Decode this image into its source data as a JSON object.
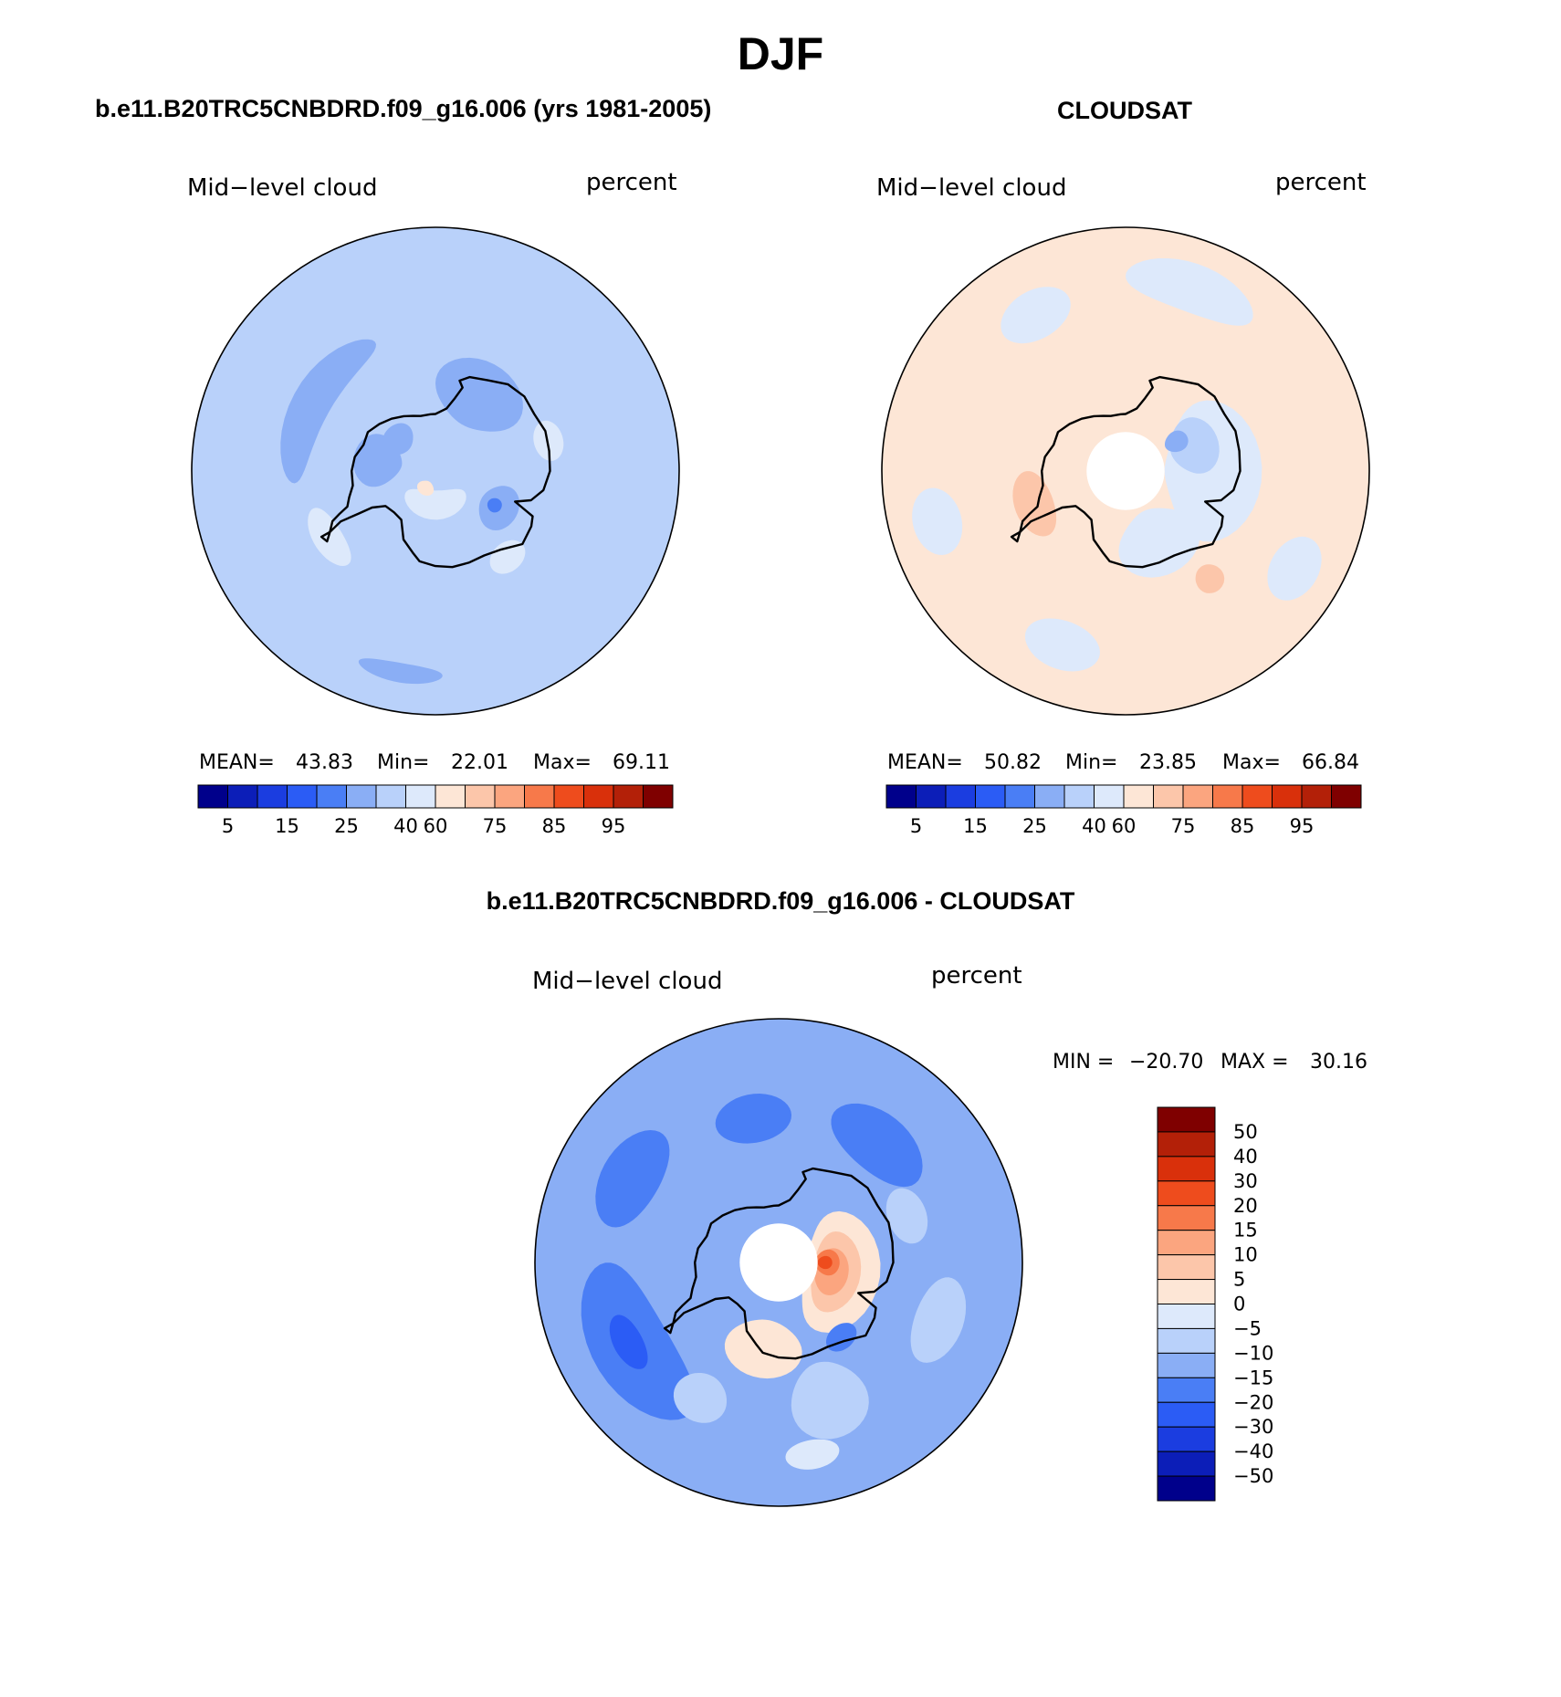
{
  "figure": {
    "title": "DJF"
  },
  "palettes": {
    "absolute": [
      "#00008b",
      "#0c1eb8",
      "#1b3de0",
      "#2b5cf5",
      "#4a7ef5",
      "#8aaef5",
      "#b9d1fa",
      "#dde9fb",
      "#fde6d6",
      "#fcc6aa",
      "#fba57f",
      "#f7794a",
      "#ee4c1d",
      "#d9300b",
      "#b32008",
      "#7f0000"
    ],
    "difference": [
      "#00008b",
      "#0c1eb8",
      "#1b3de0",
      "#2b5cf5",
      "#4a7ef5",
      "#8aaef5",
      "#b9d1fa",
      "#dde9fb",
      "#fde6d6",
      "#fcc6aa",
      "#fba57f",
      "#f7794a",
      "#ee4c1d",
      "#d9300b",
      "#b32008",
      "#7f0000"
    ],
    "land_outline": "#000000"
  },
  "chart_data": [
    {
      "type": "heatmap",
      "projection": "south-polar-stereographic",
      "title": "b.e11.B20TRC5CNBDRD.f09_g16.006 (yrs 1981-2005)",
      "variable": "Mid−level cloud",
      "units": "percent",
      "stats": {
        "mean_label": "MEAN=",
        "mean": "43.83",
        "min_label": "Min=",
        "min": "22.01",
        "max_label": "Max=",
        "max": "69.11"
      },
      "colorbar": {
        "orientation": "horizontal",
        "tick_labels": [
          "5",
          "15",
          "25",
          "40",
          "60",
          "75",
          "85",
          "95"
        ]
      },
      "background_level": 6,
      "regions": [
        {
          "level": 5,
          "lon": -120,
          "lat": -61,
          "rlon": 35,
          "rlat": 4
        },
        {
          "level": 5,
          "lon": -100,
          "lat": -78,
          "rlon": 25,
          "rlat": 5
        },
        {
          "level": 5,
          "lon": 150,
          "lat": -72,
          "rlon": 30,
          "rlat": 7
        },
        {
          "level": 5,
          "lon": 60,
          "lat": -75,
          "rlon": 18,
          "rlat": 4
        },
        {
          "level": 4,
          "lon": 60,
          "lat": -76,
          "rlon": 6,
          "rlat": 1.5
        },
        {
          "level": 5,
          "lon": -130,
          "lat": -80,
          "rlon": 20,
          "rlat": 3
        },
        {
          "level": 5,
          "lon": -10,
          "lat": -48,
          "rlon": 12,
          "rlat": 2
        },
        {
          "level": 7,
          "lon": -58,
          "lat": -64,
          "rlon": 15,
          "rlat": 3
        },
        {
          "level": 7,
          "lon": 0,
          "lat": -83,
          "rlon": 55,
          "rlat": 3
        },
        {
          "level": 8,
          "lon": -30,
          "lat": -86,
          "rlon": 25,
          "rlat": 1.5
        },
        {
          "level": 7,
          "lon": 40,
          "lat": -67,
          "rlon": 10,
          "rlat": 3
        },
        {
          "level": 7,
          "lon": 105,
          "lat": -66,
          "rlon": 10,
          "rlat": 3
        }
      ]
    },
    {
      "type": "heatmap",
      "projection": "south-polar-stereographic",
      "title": "CLOUDSAT",
      "variable": "Mid−level cloud",
      "units": "percent",
      "stats": {
        "mean_label": "MEAN=",
        "mean": "50.82",
        "min_label": "Min=",
        "min": "23.85",
        "max_label": "Max=",
        "max": "66.84"
      },
      "colorbar": {
        "orientation": "horizontal",
        "tick_labels": [
          "5",
          "15",
          "25",
          "40",
          "60",
          "75",
          "85",
          "95"
        ]
      },
      "background_level": 8,
      "pole_hole_lat": -82,
      "regions": [
        {
          "level": 7,
          "lon": 90,
          "lat": -72,
          "rlon": 45,
          "rlat": 10
        },
        {
          "level": 6,
          "lon": 110,
          "lat": -75,
          "rlon": 22,
          "rlat": 5
        },
        {
          "level": 5,
          "lon": 120,
          "lat": -78,
          "rlon": 10,
          "rlat": 2.5
        },
        {
          "level": 7,
          "lon": 25,
          "lat": -74,
          "rlon": 30,
          "rlat": 7
        },
        {
          "level": 7,
          "lon": -20,
          "lat": -52,
          "rlon": 12,
          "rlat": 5
        },
        {
          "level": 7,
          "lon": -75,
          "lat": -50,
          "rlon": 10,
          "rlat": 5
        },
        {
          "level": 7,
          "lon": 160,
          "lat": -50,
          "rlon": 20,
          "rlat": 5
        },
        {
          "level": 7,
          "lon": 60,
          "lat": -50,
          "rlon": 10,
          "rlat": 5
        },
        {
          "level": 7,
          "lon": -150,
          "lat": -53,
          "rlon": 12,
          "rlat": 5
        },
        {
          "level": 9,
          "lon": -70,
          "lat": -70,
          "rlon": 20,
          "rlat": 4
        },
        {
          "level": 9,
          "lon": 38,
          "lat": -62,
          "rlon": 6,
          "rlat": 3
        }
      ]
    },
    {
      "type": "heatmap",
      "projection": "south-polar-stereographic",
      "title": "b.e11.B20TRC5CNBDRD.f09_g16.006 - CLOUDSAT",
      "variable": "Mid−level cloud",
      "units": "percent",
      "stats": {
        "min_label": "MIN =",
        "min": "−20.70",
        "max_label": "MAX =",
        "max": "30.16"
      },
      "colorbar": {
        "orientation": "vertical",
        "tick_labels": [
          "50",
          "40",
          "30",
          "20",
          "15",
          "10",
          "5",
          "0",
          "−5",
          "−10",
          "−15",
          "−20",
          "−30",
          "−40",
          "−50"
        ]
      },
      "background_level": 5,
      "pole_hole_lat": -82,
      "regions": [
        {
          "level": 4,
          "lon": -60,
          "lat": -55,
          "rlon": 30,
          "rlat": 8
        },
        {
          "level": 4,
          "lon": -120,
          "lat": -55,
          "rlon": 18,
          "rlat": 6
        },
        {
          "level": 4,
          "lon": 140,
          "lat": -58,
          "rlon": 20,
          "rlat": 6
        },
        {
          "level": 4,
          "lon": -170,
          "lat": -60,
          "rlon": 15,
          "rlat": 5
        },
        {
          "level": 3,
          "lon": -62,
          "lat": -55,
          "rlon": 10,
          "rlat": 3
        },
        {
          "level": 6,
          "lon": 20,
          "lat": -60,
          "rlon": 15,
          "rlat": 8
        },
        {
          "level": 6,
          "lon": -30,
          "lat": -58,
          "rlon": 10,
          "rlat": 5
        },
        {
          "level": 6,
          "lon": 70,
          "lat": -55,
          "rlon": 15,
          "rlat": 5
        },
        {
          "level": 6,
          "lon": 110,
          "lat": -62,
          "rlon": 12,
          "rlat": 4
        },
        {
          "level": 7,
          "lon": 10,
          "lat": -50,
          "rlon": 8,
          "rlat": 3
        },
        {
          "level": 8,
          "lon": 80,
          "lat": -77,
          "rlon": 55,
          "rlat": 8
        },
        {
          "level": 8,
          "lon": -10,
          "lat": -72,
          "rlon": 25,
          "rlat": 6
        },
        {
          "level": 9,
          "lon": 80,
          "lat": -78,
          "rlon": 40,
          "rlat": 5
        },
        {
          "level": 10,
          "lon": 80,
          "lat": -79,
          "rlon": 25,
          "rlat": 3.5
        },
        {
          "level": 11,
          "lon": 90,
          "lat": -80,
          "rlon": 15,
          "rlat": 2.5
        },
        {
          "level": 12,
          "lon": 90,
          "lat": -80.5,
          "rlon": 8,
          "rlat": 1.5
        },
        {
          "level": 4,
          "lon": 40,
          "lat": -70,
          "rlon": 10,
          "rlat": 2.5
        }
      ]
    }
  ],
  "antarctica_coast": [
    [
      -60,
      -63
    ],
    [
      -57,
      -63.5
    ],
    [
      -60,
      -65
    ],
    [
      -64,
      -66.5
    ],
    [
      -66,
      -68.5
    ],
    [
      -68,
      -70.5
    ],
    [
      -73,
      -71.5
    ],
    [
      -80,
      -72.8
    ],
    [
      -90,
      -72.8
    ],
    [
      -100,
      -73.2
    ],
    [
      -110,
      -74.3
    ],
    [
      -120,
      -74
    ],
    [
      -130,
      -75
    ],
    [
      -140,
      -76
    ],
    [
      -150,
      -77
    ],
    [
      -158,
      -77.8
    ],
    [
      -165,
      -78.3
    ],
    [
      -175,
      -78.3
    ],
    [
      180,
      -78.3
    ],
    [
      170,
      -77
    ],
    [
      165,
      -74.5
    ],
    [
      162,
      -72
    ],
    [
      165,
      -70.8
    ],
    [
      160,
      -69.5
    ],
    [
      150,
      -68.5
    ],
    [
      140,
      -66.8
    ],
    [
      130,
      -66.2
    ],
    [
      120,
      -66.6
    ],
    [
      110,
      -66
    ],
    [
      100,
      -66.3
    ],
    [
      90,
      -66.5
    ],
    [
      80,
      -67.5
    ],
    [
      73,
      -69.5
    ],
    [
      69,
      -72.5
    ],
    [
      65,
      -68
    ],
    [
      60,
      -67.3
    ],
    [
      50,
      -66.7
    ],
    [
      40,
      -69
    ],
    [
      30,
      -70
    ],
    [
      20,
      -70
    ],
    [
      10,
      -70
    ],
    [
      0,
      -70.5
    ],
    [
      -10,
      -71.2
    ],
    [
      -15,
      -72.5
    ],
    [
      -25,
      -74.5
    ],
    [
      -35,
      -77.8
    ],
    [
      -45,
      -78
    ],
    [
      -55,
      -77.5
    ],
    [
      -60,
      -75
    ],
    [
      -61,
      -72
    ],
    [
      -62,
      -68
    ],
    [
      -60,
      -65
    ]
  ]
}
